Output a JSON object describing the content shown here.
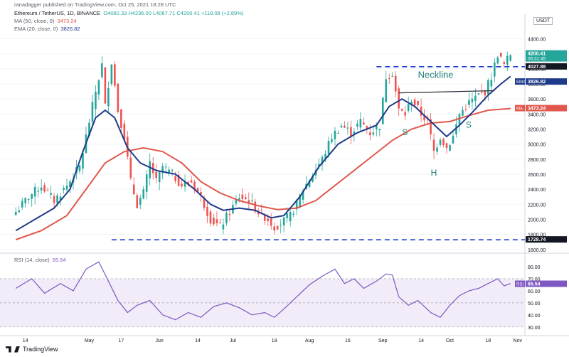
{
  "header": {
    "published": "ranadagger published on TradingView.com, Oct 25, 2021 18:28 UTC",
    "symbol": "Ethereum / TetherUS, 1D, BINANCE",
    "ohlc": "O4082.33  H4236.00  L4067.71  C4200.41  +118.08 (+2.89%)",
    "ma_label": "MA (50, close, 0)",
    "ma_value": "3473.24",
    "ema_label": "EMA (20, close, 0)",
    "ema_value": "3826.82",
    "rsi_label": "RSI (14, close)",
    "rsi_value": "65.54"
  },
  "brand": "TradingView",
  "currency": "USDT",
  "colors": {
    "up": "#26a69a",
    "down": "#ef5350",
    "ema": "#1e3a8a",
    "ma": "#e0574c",
    "rsi": "#7e57c2",
    "annotation": "#1a7f74",
    "dashed": "#1e3fd1"
  },
  "chart_data": {
    "type": "candlestick",
    "price_axis": {
      "ticks": [
        "4400.00",
        "4200.00",
        "4000.00",
        "3800.00",
        "3600.00",
        "3400.00",
        "3200.00",
        "3000.00",
        "2800.00",
        "2600.00",
        "2400.00",
        "2200.00",
        "2000.00",
        "1800.00",
        "1600.00"
      ],
      "labels": [
        {
          "text": "4200.41",
          "sub": "05:31:45",
          "value": 4200.41,
          "color": "#26a69a"
        },
        {
          "text": "4027.88",
          "value": 4027.88,
          "color": "#131722"
        },
        {
          "text": "3826.82",
          "tag": "EMA",
          "value": 3826.82,
          "color": "#1e3a8a"
        },
        {
          "text": "3473.24",
          "tag": "MA",
          "value": 3473.24,
          "color": "#e0574c"
        },
        {
          "text": "1728.74",
          "value": 1728.74,
          "color": "#131722"
        }
      ]
    },
    "rsi_axis": {
      "ticks": [
        "80.00",
        "70.00",
        "60.00",
        "50.00",
        "40.00",
        "30.00"
      ],
      "label": {
        "text": "65.54",
        "tag": "RSI",
        "value": 65.54
      }
    },
    "x_ticks": [
      "14",
      "May",
      "17",
      "Jun",
      "14",
      "Jul",
      "19",
      "Aug",
      "16",
      "Sep",
      "14",
      "Oct",
      "18",
      "Nov"
    ],
    "annotations": [
      {
        "text": "Neckline"
      },
      {
        "text": "S"
      },
      {
        "text": "H"
      },
      {
        "text": "S"
      }
    ],
    "levels": [
      {
        "name": "resistance",
        "value": 4027.88
      },
      {
        "name": "support",
        "value": 1728.74
      }
    ],
    "price_path": [
      [
        0,
        2100
      ],
      [
        4,
        2300
      ],
      [
        8,
        2450
      ],
      [
        12,
        2250
      ],
      [
        16,
        2450
      ],
      [
        20,
        2700
      ],
      [
        23,
        3300
      ],
      [
        25,
        3700
      ],
      [
        27,
        4050
      ],
      [
        28,
        3500
      ],
      [
        30,
        4100
      ],
      [
        32,
        3450
      ],
      [
        34,
        3100
      ],
      [
        36,
        2500
      ],
      [
        38,
        2200
      ],
      [
        40,
        2350
      ],
      [
        42,
        2750
      ],
      [
        44,
        2500
      ],
      [
        46,
        2700
      ],
      [
        49,
        2600
      ],
      [
        52,
        2450
      ],
      [
        55,
        2500
      ],
      [
        58,
        2300
      ],
      [
        61,
        2000
      ],
      [
        64,
        1900
      ],
      [
        67,
        2100
      ],
      [
        70,
        2300
      ],
      [
        73,
        2250
      ],
      [
        76,
        2100
      ],
      [
        79,
        2000
      ],
      [
        81,
        1900
      ],
      [
        83,
        1950
      ],
      [
        86,
        2050
      ],
      [
        88,
        2200
      ],
      [
        90,
        2400
      ],
      [
        93,
        2600
      ],
      [
        96,
        2800
      ],
      [
        99,
        3100
      ],
      [
        102,
        3250
      ],
      [
        105,
        3150
      ],
      [
        108,
        3300
      ],
      [
        111,
        3150
      ],
      [
        114,
        3250
      ],
      [
        116,
        3900
      ],
      [
        118,
        3950
      ],
      [
        120,
        3450
      ],
      [
        122,
        3400
      ],
      [
        124,
        3600
      ],
      [
        127,
        3400
      ],
      [
        129,
        3300
      ],
      [
        131,
        2900
      ],
      [
        133,
        3100
      ],
      [
        135,
        2950
      ],
      [
        137,
        3100
      ],
      [
        139,
        3400
      ],
      [
        142,
        3550
      ],
      [
        145,
        3650
      ],
      [
        147,
        3700
      ],
      [
        149,
        3900
      ],
      [
        151,
        4200
      ],
      [
        153,
        4050
      ],
      [
        155,
        4200
      ]
    ],
    "ema20": [
      [
        0,
        1850
      ],
      [
        6,
        2000
      ],
      [
        12,
        2150
      ],
      [
        17,
        2400
      ],
      [
        21,
        2900
      ],
      [
        25,
        3350
      ],
      [
        28,
        3450
      ],
      [
        31,
        3350
      ],
      [
        35,
        2950
      ],
      [
        39,
        2750
      ],
      [
        44,
        2650
      ],
      [
        50,
        2600
      ],
      [
        56,
        2400
      ],
      [
        61,
        2200
      ],
      [
        65,
        2120
      ],
      [
        70,
        2150
      ],
      [
        75,
        2120
      ],
      [
        80,
        2020
      ],
      [
        84,
        2050
      ],
      [
        89,
        2300
      ],
      [
        95,
        2700
      ],
      [
        101,
        3000
      ],
      [
        107,
        3150
      ],
      [
        113,
        3250
      ],
      [
        117,
        3500
      ],
      [
        121,
        3600
      ],
      [
        125,
        3500
      ],
      [
        130,
        3300
      ],
      [
        135,
        3100
      ],
      [
        139,
        3250
      ],
      [
        143,
        3420
      ],
      [
        148,
        3650
      ],
      [
        152,
        3800
      ],
      [
        155,
        3900
      ]
    ],
    "ma50": [
      [
        0,
        1730
      ],
      [
        8,
        1850
      ],
      [
        16,
        2050
      ],
      [
        22,
        2400
      ],
      [
        28,
        2750
      ],
      [
        34,
        2900
      ],
      [
        40,
        2950
      ],
      [
        46,
        2900
      ],
      [
        52,
        2750
      ],
      [
        58,
        2500
      ],
      [
        64,
        2350
      ],
      [
        70,
        2250
      ],
      [
        76,
        2180
      ],
      [
        82,
        2130
      ],
      [
        88,
        2150
      ],
      [
        94,
        2250
      ],
      [
        100,
        2450
      ],
      [
        106,
        2650
      ],
      [
        112,
        2850
      ],
      [
        118,
        3050
      ],
      [
        124,
        3200
      ],
      [
        130,
        3280
      ],
      [
        136,
        3300
      ],
      [
        142,
        3380
      ],
      [
        148,
        3450
      ],
      [
        155,
        3473
      ]
    ],
    "rsi14": [
      [
        0,
        62
      ],
      [
        5,
        70
      ],
      [
        9,
        58
      ],
      [
        14,
        66
      ],
      [
        18,
        60
      ],
      [
        22,
        78
      ],
      [
        26,
        84
      ],
      [
        29,
        68
      ],
      [
        32,
        52
      ],
      [
        35,
        42
      ],
      [
        38,
        48
      ],
      [
        42,
        52
      ],
      [
        46,
        40
      ],
      [
        50,
        36
      ],
      [
        54,
        42
      ],
      [
        58,
        38
      ],
      [
        62,
        47
      ],
      [
        66,
        50
      ],
      [
        70,
        46
      ],
      [
        74,
        40
      ],
      [
        78,
        42
      ],
      [
        81,
        38
      ],
      [
        84,
        45
      ],
      [
        88,
        55
      ],
      [
        92,
        65
      ],
      [
        96,
        72
      ],
      [
        100,
        78
      ],
      [
        103,
        66
      ],
      [
        106,
        70
      ],
      [
        109,
        62
      ],
      [
        113,
        68
      ],
      [
        116,
        74
      ],
      [
        118,
        73
      ],
      [
        120,
        55
      ],
      [
        123,
        48
      ],
      [
        126,
        52
      ],
      [
        130,
        42
      ],
      [
        133,
        38
      ],
      [
        136,
        48
      ],
      [
        139,
        56
      ],
      [
        142,
        60
      ],
      [
        145,
        62
      ],
      [
        148,
        66
      ],
      [
        151,
        70
      ],
      [
        153,
        64
      ],
      [
        155,
        66
      ]
    ]
  }
}
